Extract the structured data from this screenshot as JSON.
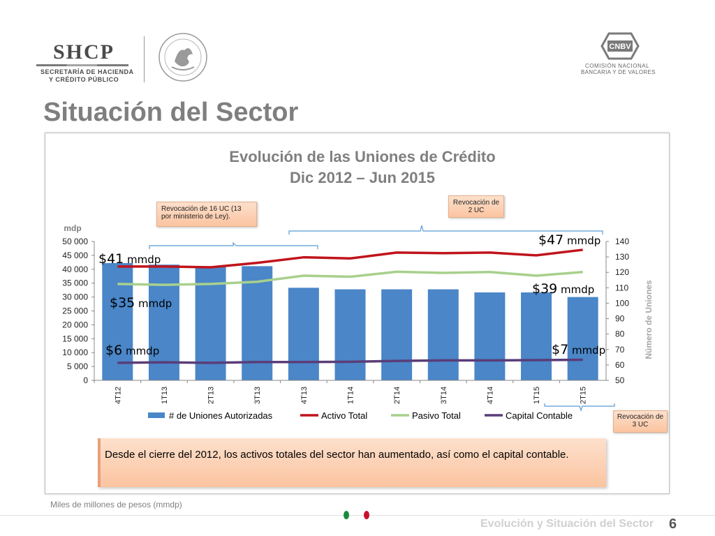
{
  "header": {
    "shcp_name": "SHCP",
    "shcp_line1": "SECRETARÍA DE HACIENDA",
    "shcp_line2": "Y CRÉDITO PÚBLICO",
    "seal_icon": "mexican-eagle-seal-icon",
    "cnbv_abbr": "CNBV",
    "cnbv_line1": "COMISIÓN NACIONAL",
    "cnbv_line2": "BANCARIA Y DE VALORES"
  },
  "page": {
    "title": "Situación del Sector",
    "summary": "Desde el cierre del 2012, los activos totales del sector han aumentado, así como el capital contable.",
    "footnote": "Miles de millones de pesos (mmdp)",
    "footer_title": "Evolución y Situación del Sector",
    "page_number": "6"
  },
  "callouts": {
    "revocation_16": "Revocación de 16 UC (13 por ministerio de Ley).",
    "revocation_2": "Revocación de 2 UC",
    "revocation_3": "Revocación de 3 UC"
  },
  "chart_data": {
    "type": "bar",
    "title_line1": "Evolución de las Uniones de Crédito",
    "title_line2": "Dic 2012 – Jun 2015",
    "categories": [
      "4T12",
      "1T13",
      "2T13",
      "3T13",
      "4T13",
      "1T14",
      "2T14",
      "3T14",
      "4T14",
      "1T15",
      "2T15"
    ],
    "y_left_label": "mdp",
    "y_left_lim": [
      0,
      50000
    ],
    "y_left_ticks": [
      "0",
      "5 000",
      "10 000",
      "15 000",
      "20 000",
      "25 000",
      "30 000",
      "35 000",
      "40 000",
      "45 000",
      "50 000"
    ],
    "y_right_label": "Número de Uniones",
    "y_right_lim": [
      50,
      140
    ],
    "y_right_ticks": [
      "50",
      "60",
      "70",
      "80",
      "90",
      "100",
      "110",
      "120",
      "130",
      "140"
    ],
    "series": [
      {
        "name": "# de Uniones Autorizadas",
        "kind": "bar",
        "axis": "right",
        "color": "#4a86c8",
        "values": [
          126,
          125,
          124,
          124,
          110,
          109,
          109,
          109,
          107,
          107,
          104
        ]
      },
      {
        "name": "Activo Total",
        "kind": "line",
        "axis": "left",
        "color": "#c0141c",
        "values": [
          41000,
          41000,
          40700,
          42300,
          44300,
          43900,
          46000,
          45800,
          46000,
          45000,
          47000
        ]
      },
      {
        "name": "Pasivo Total",
        "kind": "line",
        "axis": "left",
        "color": "#a8d08d",
        "values": [
          34700,
          34400,
          34700,
          35500,
          37700,
          37300,
          39100,
          38700,
          39000,
          37700,
          39000
        ]
      },
      {
        "name": "Capital Contable",
        "kind": "line",
        "axis": "left",
        "color": "#5a3d78",
        "values": [
          6300,
          6500,
          6300,
          6600,
          6600,
          6700,
          7000,
          7200,
          7200,
          7300,
          7400
        ]
      }
    ],
    "annotations": [
      {
        "num": "$41",
        "unit": "mmdp"
      },
      {
        "num": "$35",
        "unit": "mmdp"
      },
      {
        "num": "$6",
        "unit": "mmdp"
      },
      {
        "num": "$47",
        "unit": "mmdp"
      },
      {
        "num": "$39",
        "unit": "mmdp"
      },
      {
        "num": "$7",
        "unit": "mmdp"
      }
    ],
    "legend_position": "bottom",
    "grid": false
  }
}
